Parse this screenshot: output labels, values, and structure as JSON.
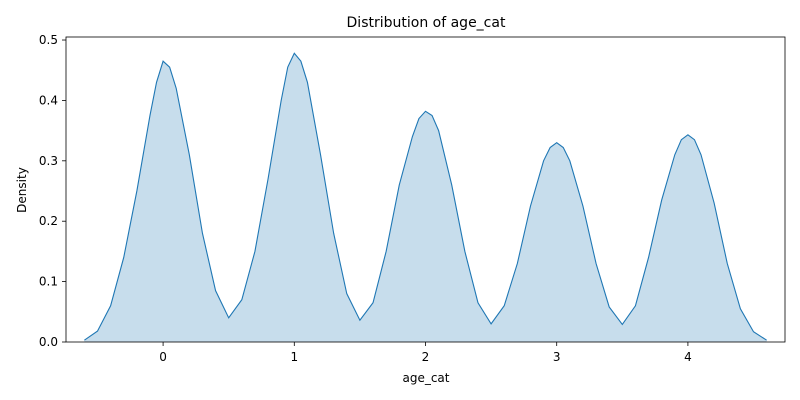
{
  "chart_data": {
    "type": "area",
    "title": "Distribution of age_cat",
    "xlabel": "age_cat",
    "ylabel": "Density",
    "xlim": [
      -0.74,
      4.74
    ],
    "ylim": [
      0,
      0.505
    ],
    "xticks": [
      0,
      1,
      2,
      3,
      4
    ],
    "yticks": [
      0.0,
      0.1,
      0.2,
      0.3,
      0.4,
      0.5
    ],
    "xtick_labels": [
      "0",
      "1",
      "2",
      "3",
      "4"
    ],
    "ytick_labels": [
      "0.0",
      "0.1",
      "0.2",
      "0.3",
      "0.4",
      "0.5"
    ],
    "grid": false,
    "legend": "none",
    "colors": {
      "line": "#1f77b4",
      "fill": "#1f77b4",
      "fill_opacity": 0.25
    },
    "series": [
      {
        "points": [
          [
            -0.6,
            0.003
          ],
          [
            -0.5,
            0.018
          ],
          [
            -0.4,
            0.06
          ],
          [
            -0.3,
            0.14
          ],
          [
            -0.2,
            0.25
          ],
          [
            -0.1,
            0.375
          ],
          [
            -0.05,
            0.43
          ],
          [
            0.0,
            0.465
          ],
          [
            0.05,
            0.455
          ],
          [
            0.1,
            0.42
          ],
          [
            0.2,
            0.31
          ],
          [
            0.3,
            0.18
          ],
          [
            0.4,
            0.085
          ],
          [
            0.5,
            0.04
          ],
          [
            0.6,
            0.07
          ],
          [
            0.7,
            0.15
          ],
          [
            0.8,
            0.27
          ],
          [
            0.9,
            0.4
          ],
          [
            0.95,
            0.455
          ],
          [
            1.0,
            0.478
          ],
          [
            1.05,
            0.465
          ],
          [
            1.1,
            0.43
          ],
          [
            1.2,
            0.31
          ],
          [
            1.3,
            0.18
          ],
          [
            1.4,
            0.08
          ],
          [
            1.5,
            0.036
          ],
          [
            1.6,
            0.065
          ],
          [
            1.7,
            0.15
          ],
          [
            1.8,
            0.26
          ],
          [
            1.9,
            0.34
          ],
          [
            1.95,
            0.37
          ],
          [
            2.0,
            0.382
          ],
          [
            2.05,
            0.375
          ],
          [
            2.1,
            0.35
          ],
          [
            2.2,
            0.26
          ],
          [
            2.3,
            0.15
          ],
          [
            2.4,
            0.065
          ],
          [
            2.5,
            0.03
          ],
          [
            2.6,
            0.06
          ],
          [
            2.7,
            0.13
          ],
          [
            2.8,
            0.225
          ],
          [
            2.9,
            0.3
          ],
          [
            2.95,
            0.322
          ],
          [
            3.0,
            0.33
          ],
          [
            3.05,
            0.322
          ],
          [
            3.1,
            0.3
          ],
          [
            3.2,
            0.225
          ],
          [
            3.3,
            0.13
          ],
          [
            3.4,
            0.058
          ],
          [
            3.5,
            0.029
          ],
          [
            3.6,
            0.06
          ],
          [
            3.7,
            0.14
          ],
          [
            3.8,
            0.235
          ],
          [
            3.9,
            0.31
          ],
          [
            3.95,
            0.335
          ],
          [
            4.0,
            0.343
          ],
          [
            4.05,
            0.335
          ],
          [
            4.1,
            0.31
          ],
          [
            4.2,
            0.23
          ],
          [
            4.3,
            0.13
          ],
          [
            4.4,
            0.055
          ],
          [
            4.5,
            0.017
          ],
          [
            4.6,
            0.003
          ]
        ]
      }
    ]
  }
}
